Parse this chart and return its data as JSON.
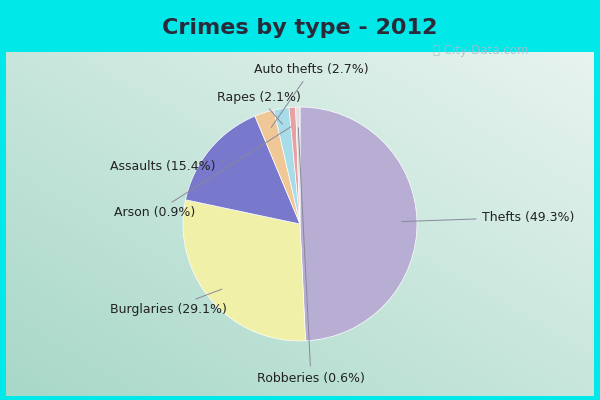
{
  "title": "Crimes by type - 2012",
  "labels": [
    "Thefts",
    "Burglaries",
    "Assaults",
    "Auto thefts",
    "Rapes",
    "Arson",
    "Robberies"
  ],
  "values": [
    49.3,
    29.1,
    15.4,
    2.7,
    2.1,
    0.9,
    0.6
  ],
  "colors": [
    "#b8aed4",
    "#f0f0a8",
    "#7878cc",
    "#f0c898",
    "#a8dce8",
    "#e8a0a0",
    "#e0e0e0"
  ],
  "bg_cyan": "#00e8e8",
  "bg_inner_tl": "#a8d8c8",
  "bg_inner_br": "#e8f4f0",
  "title_fontsize": 16,
  "label_fontsize": 9,
  "title_color": "#2a2a3a"
}
